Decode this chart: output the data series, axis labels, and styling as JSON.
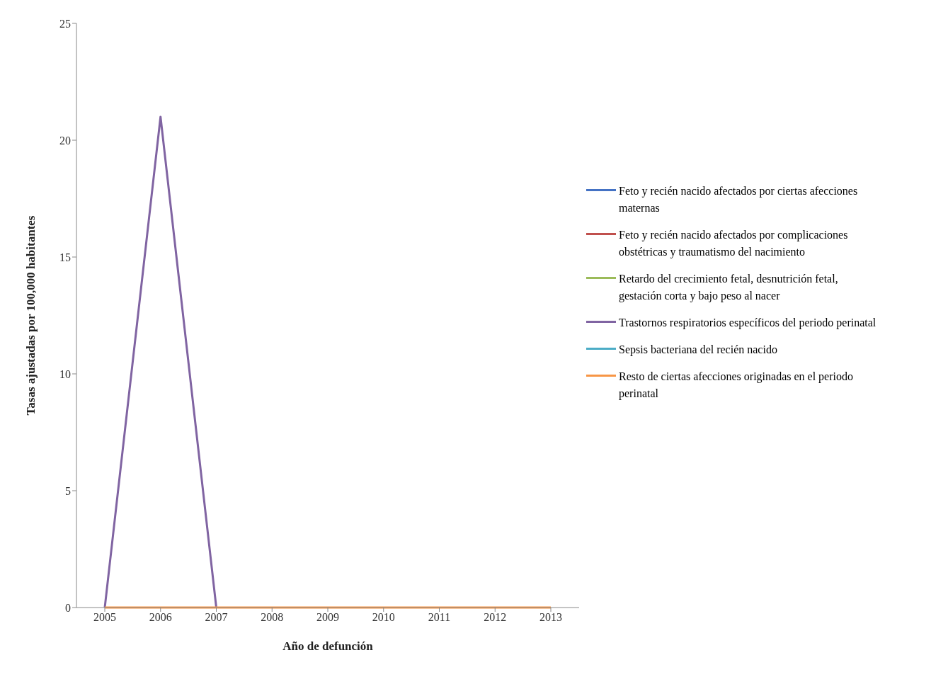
{
  "chart_data": {
    "type": "line",
    "xlabel": "Año de defunción",
    "ylabel": "Tasas ajustadas por 100,000 habitantes",
    "categories": [
      "2005",
      "2006",
      "2007",
      "2008",
      "2009",
      "2010",
      "2011",
      "2012",
      "2013"
    ],
    "series": [
      {
        "name": "Feto y recién nacido afectados por ciertas afecciones maternas",
        "color": "#4472c4",
        "values": [
          null,
          null,
          null,
          null,
          null,
          null,
          null,
          null,
          null
        ]
      },
      {
        "name": "Feto y recién nacido afectados por complicaciones obstétricas y traumatismo del nacimiento",
        "color": "#c0504d",
        "values": [
          null,
          null,
          null,
          null,
          null,
          null,
          null,
          null,
          null
        ]
      },
      {
        "name": "Retardo del crecimiento fetal, desnutrición fetal, gestación corta y bajo peso al nacer",
        "color": "#9bbb59",
        "values": [
          null,
          null,
          null,
          null,
          null,
          null,
          null,
          null,
          null
        ]
      },
      {
        "name": "Trastornos respiratorios específicos del periodo perinatal",
        "color": "#8064a2",
        "values": [
          0,
          21,
          0,
          null,
          null,
          null,
          null,
          null,
          null
        ]
      },
      {
        "name": "Sepsis bacteriana del recién nacido",
        "color": "#4bacc6",
        "values": [
          null,
          null,
          null,
          null,
          null,
          null,
          null,
          null,
          null
        ]
      },
      {
        "name": "Resto de ciertas afecciones originadas en el periodo perinatal",
        "color": "#f79646",
        "values": [
          0,
          0,
          0,
          0,
          0,
          0,
          0,
          0,
          0
        ]
      }
    ],
    "ylim": [
      0,
      25
    ],
    "yticks": [
      0,
      5,
      10,
      15,
      20,
      25
    ],
    "grid": false,
    "legend": "right",
    "marker": "none",
    "line_style": "solid"
  }
}
